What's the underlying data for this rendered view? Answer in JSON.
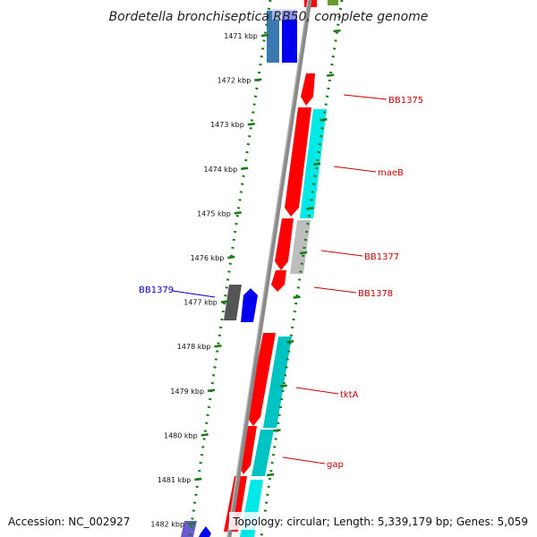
{
  "title": "Bordetella bronchiseptica RB50, complete genome",
  "footer": {
    "accession": "Accession: NC_002927",
    "summary": "Topology: circular; Length: 5,339,179 bp; Genes: 5,059"
  },
  "ticks": [
    {
      "kbp": 1471,
      "label": "1471 kbp"
    },
    {
      "kbp": 1472,
      "label": "1472 kbp"
    },
    {
      "kbp": 1473,
      "label": "1473 kbp"
    },
    {
      "kbp": 1474,
      "label": "1474 kbp"
    },
    {
      "kbp": 1475,
      "label": "1475 kbp"
    },
    {
      "kbp": 1476,
      "label": "1476 kbp"
    },
    {
      "kbp": 1477,
      "label": "1477 kbp"
    },
    {
      "kbp": 1478,
      "label": "1478 kbp"
    },
    {
      "kbp": 1479,
      "label": "1479 kbp"
    },
    {
      "kbp": 1480,
      "label": "1480 kbp"
    },
    {
      "kbp": 1481,
      "label": "1481 kbp"
    },
    {
      "kbp": 1482,
      "label": "1482 kbp"
    }
  ],
  "gene_labels": [
    {
      "text": "BB1375",
      "color": "#cc0000"
    },
    {
      "text": "maeB",
      "color": "#cc0000"
    },
    {
      "text": "BB1377",
      "color": "#cc0000"
    },
    {
      "text": "BB1378",
      "color": "#cc0000"
    },
    {
      "text": "BB1379",
      "color": "#0000cc"
    },
    {
      "text": "tktA",
      "color": "#cc0000"
    },
    {
      "text": "gap",
      "color": "#cc0000"
    }
  ],
  "colors": {
    "backbone": "#888888",
    "dotted_ring": "#1a7a1a",
    "gene_red": "#ff0000",
    "gene_cyan": "#00e8e8",
    "gene_teal": "#00c4c4",
    "gene_blue": "#0000ee",
    "gene_steelblue": "#3a78b0",
    "gene_gray": "#bdbdbd",
    "gene_darkgray": "#555555",
    "gene_olive": "#6a9a2a",
    "gene_purple": "#6a5acd"
  }
}
